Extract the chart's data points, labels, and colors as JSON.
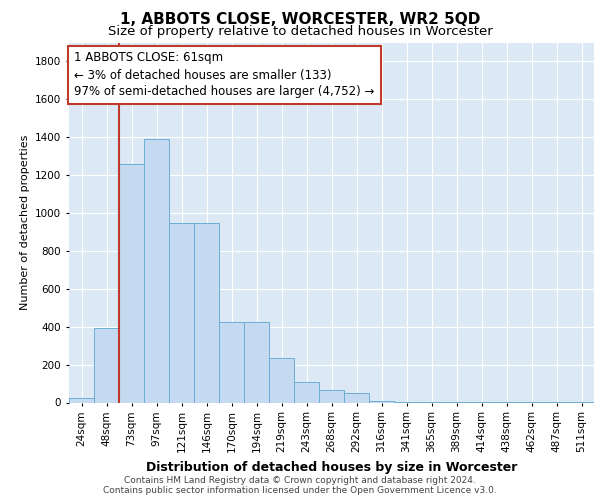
{
  "title": "1, ABBOTS CLOSE, WORCESTER, WR2 5QD",
  "subtitle": "Size of property relative to detached houses in Worcester",
  "xlabel": "Distribution of detached houses by size in Worcester",
  "ylabel": "Number of detached properties",
  "categories": [
    "24sqm",
    "48sqm",
    "73sqm",
    "97sqm",
    "121sqm",
    "146sqm",
    "170sqm",
    "194sqm",
    "219sqm",
    "243sqm",
    "268sqm",
    "292sqm",
    "316sqm",
    "341sqm",
    "365sqm",
    "389sqm",
    "414sqm",
    "438sqm",
    "462sqm",
    "487sqm",
    "511sqm"
  ],
  "values": [
    25,
    395,
    1260,
    1390,
    950,
    950,
    425,
    425,
    235,
    110,
    65,
    50,
    10,
    5,
    3,
    2,
    1,
    1,
    1,
    1,
    1
  ],
  "bar_color": "#c5d9f0",
  "bar_edge_color": "#6baed6",
  "vline_color": "#c0392b",
  "annotation_text": "1 ABBOTS CLOSE: 61sqm\n← 3% of detached houses are smaller (133)\n97% of semi-detached houses are larger (4,752) →",
  "annotation_box_color": "#ffffff",
  "annotation_box_edge_color": "#c0392b",
  "ylim": [
    0,
    1900
  ],
  "yticks": [
    0,
    200,
    400,
    600,
    800,
    1000,
    1200,
    1400,
    1600,
    1800
  ],
  "grid_color": "#ffffff",
  "background_color": "#dce9f5",
  "footer_line1": "Contains HM Land Registry data © Crown copyright and database right 2024.",
  "footer_line2": "Contains public sector information licensed under the Open Government Licence v3.0.",
  "title_fontsize": 11,
  "subtitle_fontsize": 9.5,
  "xlabel_fontsize": 9,
  "ylabel_fontsize": 8,
  "tick_fontsize": 7.5,
  "annotation_fontsize": 8.5,
  "footer_fontsize": 6.5
}
